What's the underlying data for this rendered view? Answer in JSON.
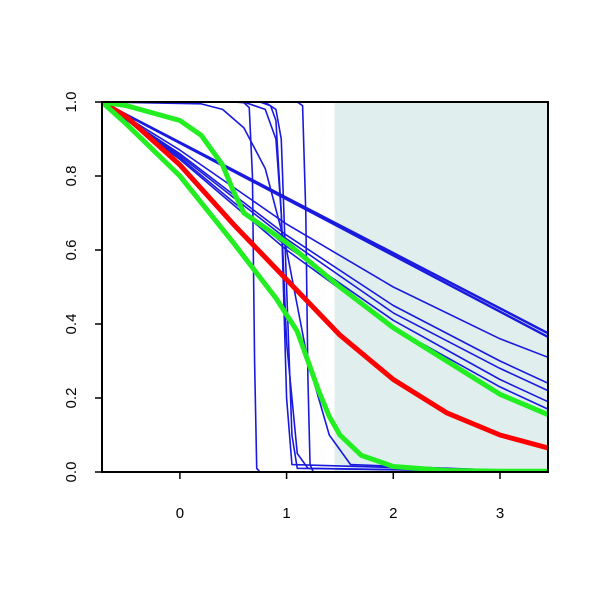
{
  "chart_data": {
    "type": "line",
    "title": "",
    "xlabel": "",
    "ylabel": "",
    "xlim": [
      -0.73,
      3.45
    ],
    "ylim": [
      0,
      1
    ],
    "x_ticks": [
      0,
      1,
      2,
      3
    ],
    "x_tick_labels": [
      "0",
      "1",
      "2",
      "3"
    ],
    "y_ticks": [
      0,
      0.2,
      0.4,
      0.6,
      0.8,
      1.0
    ],
    "y_tick_labels": [
      "0.0",
      "0.2",
      "0.4",
      "0.6",
      "0.8",
      "1.0"
    ],
    "grid": false,
    "legend": "none",
    "shaded_region": {
      "x_start": 1.45,
      "x_end": 3.45,
      "color": "#e0eeee"
    },
    "colors": {
      "thin_curves": "#1a1adf",
      "red_curve": "#ff0000",
      "green_curves": "#22ee22",
      "shade": "#e0eeee"
    },
    "series": [
      {
        "color": "#1a1adf",
        "width": 1.6,
        "x": [
          -0.73,
          0.5,
          0.6,
          0.65,
          0.68,
          0.7,
          0.72,
          0.75,
          3.45
        ],
        "y": [
          1.0,
          1.0,
          0.998,
          0.985,
          0.8,
          0.3,
          0.01,
          0.0,
          0.0
        ]
      },
      {
        "color": "#1a1adf",
        "width": 1.6,
        "x": [
          -0.73,
          0.7,
          0.8,
          0.9,
          0.95,
          1.0,
          1.05,
          1.1,
          3.45
        ],
        "y": [
          1.0,
          1.0,
          0.999,
          0.98,
          0.9,
          0.5,
          0.1,
          0.01,
          0.0
        ]
      },
      {
        "color": "#1a1adf",
        "width": 1.6,
        "x": [
          -0.73,
          0.75,
          0.85,
          0.9,
          0.95,
          1.0,
          1.05,
          3.45
        ],
        "y": [
          1.0,
          1.0,
          0.99,
          0.95,
          0.7,
          0.2,
          0.02,
          0.0
        ]
      },
      {
        "color": "#1a1adf",
        "width": 1.6,
        "x": [
          -0.73,
          0.6,
          0.8,
          0.9,
          0.95,
          1.0,
          1.1,
          1.2,
          3.45
        ],
        "y": [
          1.0,
          1.0,
          0.98,
          0.9,
          0.7,
          0.35,
          0.05,
          0.01,
          0.0
        ]
      },
      {
        "color": "#1a1adf",
        "width": 1.6,
        "x": [
          -0.73,
          0.9,
          1.1,
          1.15,
          1.18,
          1.2,
          1.22,
          1.25,
          3.45
        ],
        "y": [
          1.0,
          1.0,
          1.0,
          0.99,
          0.7,
          0.25,
          0.02,
          0.0,
          0.0
        ]
      },
      {
        "color": "#1a1adf",
        "width": 1.6,
        "x": [
          -0.73,
          0.2,
          0.4,
          0.6,
          0.8,
          1.0,
          1.2,
          1.4,
          1.6,
          3.45
        ],
        "y": [
          1.0,
          0.995,
          0.98,
          0.93,
          0.82,
          0.6,
          0.3,
          0.1,
          0.02,
          0.0
        ]
      },
      {
        "color": "#1a1adf",
        "width": 2.4,
        "x": [
          -0.73,
          3.45
        ],
        "y": [
          1.0,
          0.375
        ]
      },
      {
        "color": "#1a1adf",
        "width": 2.4,
        "x": [
          -0.73,
          3.45
        ],
        "y": [
          1.0,
          0.365
        ]
      },
      {
        "color": "#1a1adf",
        "width": 1.6,
        "x": [
          -0.73,
          0.0,
          1.0,
          2.0,
          3.0,
          3.45
        ],
        "y": [
          1.0,
          0.87,
          0.67,
          0.5,
          0.36,
          0.31
        ]
      },
      {
        "color": "#1a1adf",
        "width": 1.6,
        "x": [
          -0.73,
          0.0,
          1.0,
          2.0,
          3.0,
          3.45
        ],
        "y": [
          1.0,
          0.86,
          0.64,
          0.45,
          0.3,
          0.24
        ]
      },
      {
        "color": "#1a1adf",
        "width": 1.6,
        "x": [
          -0.73,
          0.0,
          1.0,
          2.0,
          3.0,
          3.45
        ],
        "y": [
          1.0,
          0.855,
          0.63,
          0.43,
          0.28,
          0.22
        ]
      },
      {
        "color": "#1a1adf",
        "width": 1.6,
        "x": [
          -0.73,
          0.0,
          1.0,
          2.0,
          3.0,
          3.45
        ],
        "y": [
          1.0,
          0.85,
          0.61,
          0.41,
          0.25,
          0.19
        ]
      },
      {
        "color": "#1a1adf",
        "width": 1.6,
        "x": [
          -0.73,
          0.0,
          1.0,
          2.0,
          3.0,
          3.45
        ],
        "y": [
          1.0,
          0.845,
          0.6,
          0.39,
          0.23,
          0.17
        ]
      },
      {
        "color": "#ff0000",
        "width": 5,
        "x": [
          -0.73,
          -0.5,
          0.0,
          0.5,
          1.0,
          1.5,
          2.0,
          2.5,
          3.0,
          3.45
        ],
        "y": [
          1.0,
          0.96,
          0.83,
          0.67,
          0.52,
          0.37,
          0.25,
          0.16,
          0.1,
          0.065
        ]
      },
      {
        "color": "#22ee22",
        "width": 5,
        "x": [
          -0.73,
          -0.5,
          0.0,
          0.2,
          0.4,
          0.5,
          0.6,
          0.8,
          1.0,
          1.5,
          2.0,
          2.5,
          3.0,
          3.45
        ],
        "y": [
          1.0,
          0.99,
          0.95,
          0.91,
          0.83,
          0.76,
          0.7,
          0.66,
          0.62,
          0.5,
          0.39,
          0.3,
          0.21,
          0.155
        ]
      },
      {
        "color": "#22ee22",
        "width": 5,
        "x": [
          -0.73,
          -0.5,
          0.0,
          0.5,
          0.9,
          1.1,
          1.2,
          1.3,
          1.4,
          1.5,
          1.7,
          2.0,
          2.5,
          3.0,
          3.45
        ],
        "y": [
          1.0,
          0.94,
          0.8,
          0.62,
          0.47,
          0.38,
          0.3,
          0.22,
          0.15,
          0.1,
          0.045,
          0.015,
          0.004,
          0.002,
          0.002
        ]
      }
    ]
  }
}
